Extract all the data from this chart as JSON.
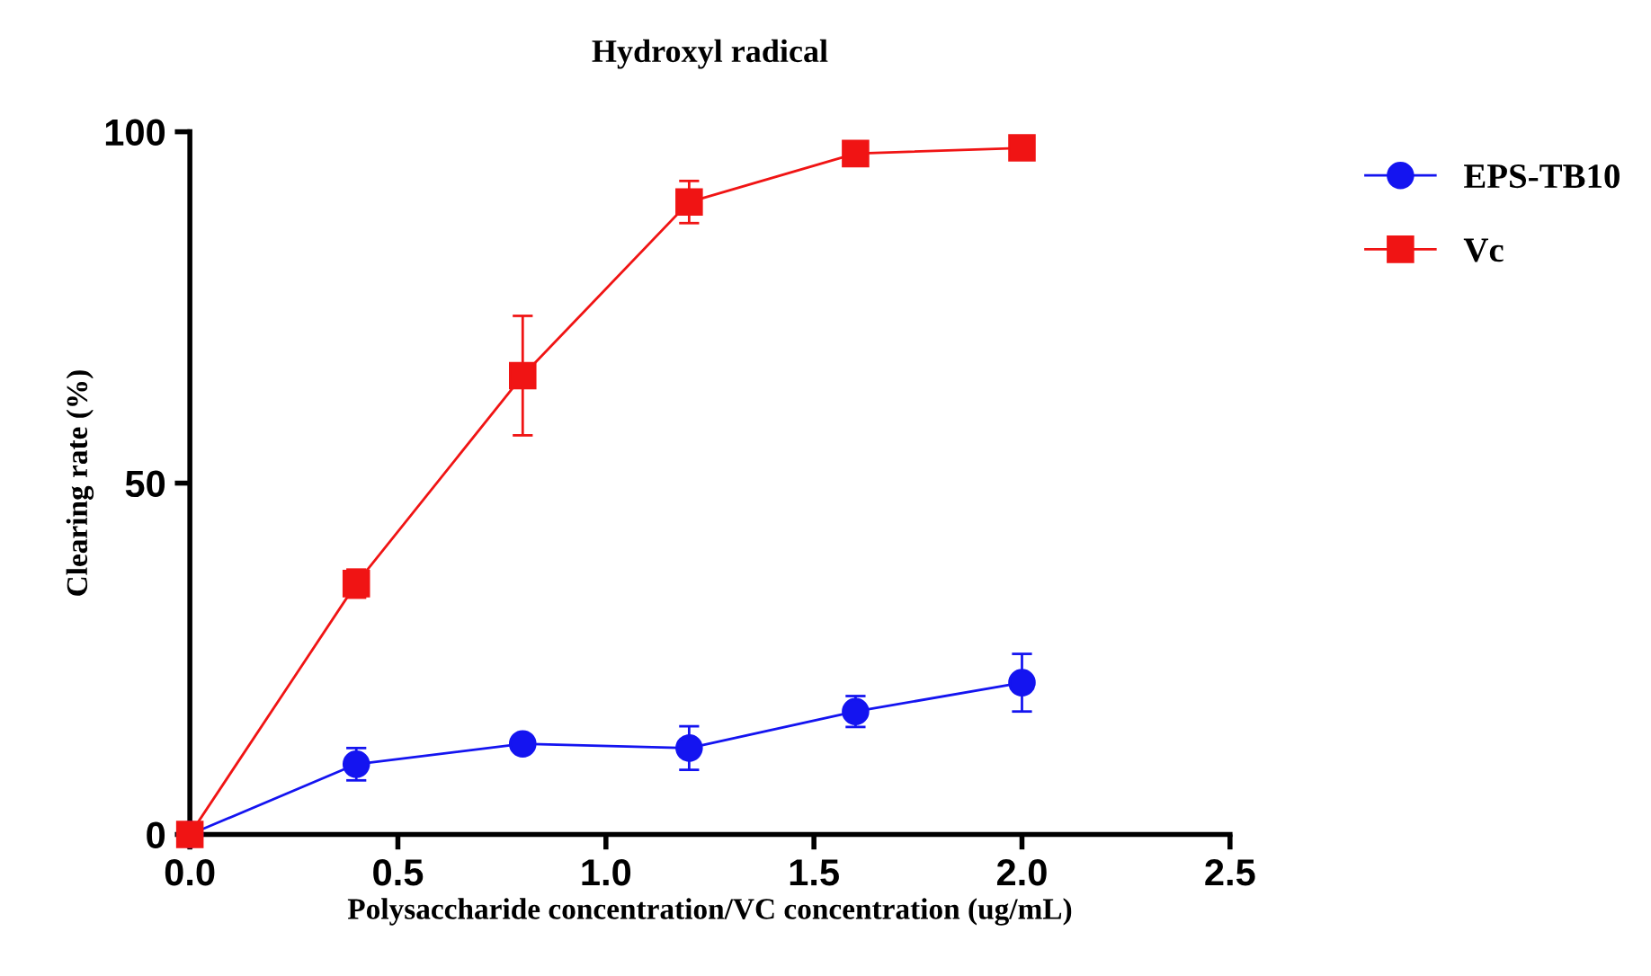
{
  "chart_data": {
    "type": "line",
    "title": "Hydroxyl radical",
    "xlabel": "Polysaccharide concentration/VC concentration (ug/mL)",
    "ylabel": "Clearing rate (%)",
    "x": [
      0,
      0.4,
      0.8,
      1.2,
      1.6,
      2.0
    ],
    "series": [
      {
        "name": "EPS-TB10",
        "color": "#1414f0",
        "marker": "circle",
        "values": [
          0,
          10,
          12.9,
          12.3,
          17.5,
          21.6
        ],
        "errors": [
          null,
          2.3,
          0.8,
          3.1,
          2.2,
          4.1
        ]
      },
      {
        "name": "Vc",
        "color": "#f01414",
        "marker": "square",
        "values": [
          0,
          35.7,
          65.3,
          90,
          96.9,
          97.7
        ],
        "errors": [
          null,
          2,
          8.5,
          3,
          0.5,
          0.5
        ]
      }
    ],
    "xlim": [
      0,
      2.5
    ],
    "xticks": [
      {
        "value": 0,
        "label": "0.0"
      },
      0.5,
      {
        "value": 1,
        "label": "1.0"
      },
      1.5,
      {
        "value": 2,
        "label": "2.0"
      },
      2.5
    ],
    "ylim": [
      0,
      100
    ],
    "yticks": [
      0,
      50,
      100
    ],
    "grid": false,
    "legend": "top right",
    "line_style": "solid"
  }
}
